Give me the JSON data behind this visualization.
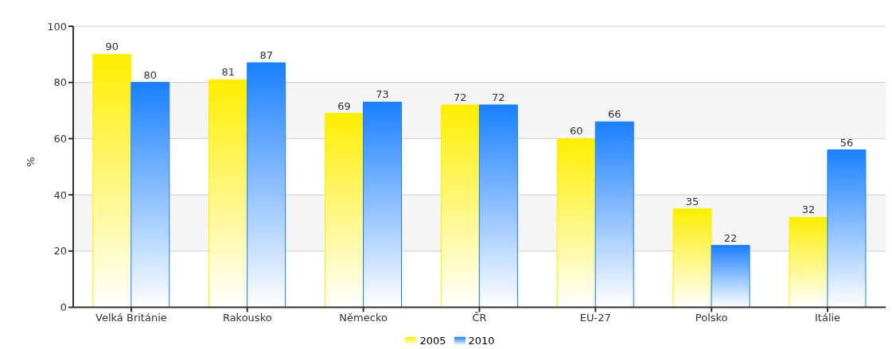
{
  "chart_data": {
    "type": "bar",
    "ylabel": "%",
    "categories": [
      "Velká Británie",
      "Rakousko",
      "Německo",
      "ČR",
      "EU-27",
      "Polsko",
      "Itálie"
    ],
    "series": [
      {
        "name": "2005",
        "color": "#ffee00",
        "values": [
          90,
          81,
          69,
          72,
          60,
          35,
          32
        ]
      },
      {
        "name": "2010",
        "color": "#1a80ff",
        "values": [
          80,
          87,
          73,
          72,
          66,
          22,
          56
        ]
      }
    ],
    "ylim": [
      0,
      100
    ],
    "yticks": [
      0,
      20,
      40,
      60,
      80,
      100
    ],
    "grid": "y",
    "legend": "bottom",
    "data_labels": true
  }
}
